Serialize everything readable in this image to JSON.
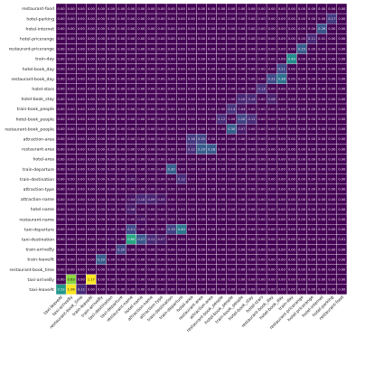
{
  "chart_data": {
    "type": "heatmap",
    "title": "",
    "xlabel": "",
    "ylabel": "",
    "colormap": "viridis",
    "vmin": 0,
    "vmax": 1,
    "grid": true,
    "rows": [
      "restaurant-food",
      "hotel-parking",
      "hotel-internet",
      "hotel-pricerange",
      "restaurant-pricerange",
      "train-day",
      "hotel-book_day",
      "restaurant-book_day",
      "hotel-stars",
      "hotel-book_stay",
      "train-book_people",
      "hotel-book_people",
      "restaurant-book_people",
      "attraction-area",
      "restaurant-area",
      "hotel-area",
      "train-departure",
      "train-destination",
      "attraction-type",
      "attraction-name",
      "hotel-name",
      "restaurant-name",
      "taxi-departure",
      "taxi-destination",
      "train-arriveBy",
      "train-leaveAt",
      "restaurant-book_time",
      "taxi-arriveBy",
      "taxi-leaveAt"
    ],
    "columns": [
      "taxi-leaveAt",
      "taxi-arriveBy",
      "restaurant-book_time",
      "train-leaveAt",
      "train-arriveBy",
      "taxi-destination",
      "taxi-departure",
      "restaurant-name",
      "hotel-name",
      "attraction-name",
      "attraction-type",
      "train-destination",
      "train-departure",
      "hotel-area",
      "restaurant-area",
      "attraction-area",
      "restaurant-book_people",
      "hotel-book_people",
      "train-book_people",
      "hotel-book_stay",
      "hotel-stars",
      "restaurant-book_day",
      "hotel-book_day",
      "train-day",
      "restaurant-pricerange",
      "hotel-pricerange",
      "hotel-internet",
      "hotel-parking",
      "restaurant-food"
    ],
    "values": [
      [
        0.0,
        0.0,
        0.0,
        0.0,
        0.0,
        0.0,
        0.0,
        0.0,
        0.0,
        0.0,
        0.0,
        0.0,
        0.0,
        0.0,
        0.0,
        0.0,
        0.0,
        0.0,
        0.0,
        0.0,
        0.0,
        0.0,
        0.0,
        0.0,
        0.0,
        0.0,
        0.0,
        0.0,
        0.0
      ],
      [
        0.0,
        0.0,
        0.0,
        0.0,
        0.0,
        0.0,
        0.0,
        0.0,
        0.0,
        0.0,
        0.0,
        0.0,
        0.0,
        0.0,
        0.0,
        0.0,
        0.0,
        0.0,
        0.0,
        0.0,
        0.0,
        0.0,
        0.0,
        0.0,
        0.0,
        0.0,
        0.0,
        0.17,
        0.0
      ],
      [
        0.0,
        0.0,
        0.0,
        0.0,
        0.0,
        0.0,
        0.0,
        0.0,
        0.0,
        0.0,
        0.0,
        0.0,
        0.0,
        0.0,
        0.0,
        0.0,
        0.0,
        0.0,
        0.0,
        0.0,
        0.0,
        0.0,
        0.0,
        0.0,
        0.0,
        0.0,
        0.26,
        0.0,
        0.0
      ],
      [
        0.0,
        0.0,
        0.0,
        0.0,
        0.0,
        0.0,
        0.0,
        0.0,
        0.0,
        0.0,
        0.0,
        0.0,
        0.0,
        0.0,
        0.0,
        0.0,
        0.0,
        0.0,
        0.0,
        0.0,
        0.0,
        0.0,
        0.0,
        0.0,
        0.0,
        0.11,
        0.01,
        0.0,
        0.0
      ],
      [
        0.0,
        0.0,
        0.0,
        0.0,
        0.0,
        0.0,
        0.0,
        0.0,
        0.0,
        0.0,
        0.0,
        0.0,
        0.0,
        0.0,
        0.0,
        0.0,
        0.0,
        0.0,
        0.0,
        0.0,
        0.0,
        0.0,
        0.0,
        0.0,
        0.29,
        0.0,
        0.0,
        0.0,
        0.0
      ],
      [
        0.0,
        0.0,
        0.0,
        0.0,
        0.0,
        0.0,
        0.0,
        0.0,
        0.0,
        0.0,
        0.0,
        0.0,
        0.0,
        0.0,
        0.0,
        0.0,
        0.0,
        0.0,
        0.0,
        0.0,
        0.0,
        0.0,
        0.0,
        0.49,
        0.0,
        0.0,
        0.0,
        0.0,
        0.0
      ],
      [
        0.0,
        0.0,
        0.0,
        0.0,
        0.0,
        0.0,
        0.0,
        0.0,
        0.0,
        0.0,
        0.0,
        0.0,
        0.0,
        0.0,
        0.0,
        0.0,
        0.0,
        0.0,
        0.0,
        0.0,
        0.0,
        0.0,
        0.21,
        0.0,
        0.0,
        0.0,
        0.0,
        0.0,
        0.0
      ],
      [
        0.0,
        0.0,
        0.0,
        0.0,
        0.0,
        0.0,
        0.0,
        0.0,
        0.0,
        0.0,
        0.0,
        0.0,
        0.0,
        0.0,
        0.0,
        0.0,
        0.0,
        0.0,
        0.0,
        0.0,
        0.0,
        0.22,
        0.38,
        0.0,
        0.0,
        0.0,
        0.0,
        0.0,
        0.0
      ],
      [
        0.0,
        0.0,
        0.0,
        0.0,
        0.0,
        0.0,
        0.0,
        0.0,
        0.0,
        0.0,
        0.0,
        0.0,
        0.0,
        0.0,
        0.0,
        0.0,
        0.0,
        0.0,
        0.0,
        0.0,
        0.13,
        0.0,
        0.0,
        0.0,
        0.0,
        0.0,
        0.0,
        0.0,
        0.0
      ],
      [
        0.0,
        0.0,
        0.0,
        0.0,
        0.0,
        0.0,
        0.0,
        0.0,
        0.0,
        0.0,
        0.0,
        0.0,
        0.0,
        0.0,
        0.0,
        0.0,
        0.0,
        0.0,
        0.1,
        0.1,
        0.0,
        0.08,
        0.0,
        0.0,
        0.0,
        0.0,
        0.0,
        0.0,
        0.0
      ],
      [
        0.0,
        0.0,
        0.0,
        0.0,
        0.0,
        0.0,
        0.0,
        0.0,
        0.0,
        0.0,
        0.0,
        0.0,
        0.0,
        0.0,
        0.0,
        0.0,
        0.0,
        0.14,
        0.04,
        0.0,
        0.0,
        0.0,
        0.0,
        0.0,
        0.0,
        0.0,
        0.0,
        0.0,
        0.0
      ],
      [
        0.0,
        0.0,
        0.0,
        0.0,
        0.0,
        0.0,
        0.0,
        0.0,
        0.0,
        0.0,
        0.0,
        0.0,
        0.0,
        0.0,
        0.0,
        0.0,
        0.12,
        0.0,
        0.2,
        0.12,
        0.0,
        0.0,
        0.0,
        0.0,
        0.0,
        0.0,
        0.0,
        0.0,
        0.0
      ],
      [
        0.0,
        0.0,
        0.0,
        0.0,
        0.0,
        0.0,
        0.0,
        0.0,
        0.0,
        0.0,
        0.0,
        0.0,
        0.0,
        0.0,
        0.0,
        0.0,
        0.0,
        0.3,
        0.07,
        0.0,
        0.0,
        0.0,
        0.0,
        0.0,
        0.0,
        0.0,
        0.0,
        0.0,
        0.0
      ],
      [
        0.0,
        0.0,
        0.0,
        0.0,
        0.0,
        0.0,
        0.0,
        0.0,
        0.0,
        0.0,
        0.0,
        0.0,
        0.0,
        0.16,
        0.2,
        0.0,
        0.0,
        0.0,
        0.0,
        0.0,
        0.0,
        0.0,
        0.0,
        0.0,
        0.0,
        0.0,
        0.0,
        0.0,
        0.0
      ],
      [
        0.0,
        0.0,
        0.0,
        0.0,
        0.0,
        0.0,
        0.0,
        0.0,
        0.0,
        0.0,
        0.0,
        0.0,
        0.0,
        0.12,
        0.29,
        0.28,
        0.0,
        0.0,
        0.0,
        0.0,
        0.0,
        0.0,
        0.0,
        0.0,
        0.0,
        0.0,
        0.0,
        0.0,
        0.0
      ],
      [
        0.0,
        0.0,
        0.0,
        0.0,
        0.0,
        0.0,
        0.0,
        0.0,
        0.0,
        0.0,
        0.0,
        0.0,
        0.0,
        0.0,
        0.0,
        0.0,
        0.0,
        0.0,
        0.0,
        0.0,
        0.0,
        0.0,
        0.0,
        0.0,
        0.0,
        0.0,
        0.0,
        0.0,
        0.0
      ],
      [
        0.0,
        0.0,
        0.0,
        0.0,
        0.0,
        0.0,
        0.0,
        0.0,
        0.0,
        0.0,
        0.0,
        0.3,
        0.0,
        0.0,
        0.0,
        0.0,
        0.0,
        0.0,
        0.0,
        0.0,
        0.0,
        0.0,
        0.0,
        0.0,
        0.0,
        0.0,
        0.0,
        0.0,
        0.0
      ],
      [
        0.0,
        0.0,
        0.0,
        0.0,
        0.0,
        0.0,
        0.0,
        0.02,
        0.0,
        0.0,
        0.0,
        0.0,
        0.12,
        0.0,
        0.0,
        0.0,
        0.0,
        0.0,
        0.0,
        0.0,
        0.0,
        0.0,
        0.0,
        0.0,
        0.0,
        0.0,
        0.0,
        0.0,
        0.0
      ],
      [
        0.0,
        0.0,
        0.0,
        0.0,
        0.0,
        0.0,
        0.0,
        0.0,
        0.0,
        0.0,
        0.0,
        0.0,
        0.0,
        0.0,
        0.0,
        0.0,
        0.0,
        0.0,
        0.0,
        0.0,
        0.0,
        0.0,
        0.0,
        0.0,
        0.0,
        0.0,
        0.0,
        0.0,
        0.0
      ],
      [
        0.0,
        0.0,
        0.0,
        0.0,
        0.0,
        0.0,
        0.0,
        0.04,
        0.1,
        0.09,
        0.05,
        0.0,
        0.0,
        0.0,
        0.0,
        0.0,
        0.0,
        0.0,
        0.0,
        0.0,
        0.0,
        0.0,
        0.0,
        0.0,
        0.0,
        0.0,
        0.0,
        0.0,
        0.0
      ],
      [
        0.0,
        0.0,
        0.0,
        0.0,
        0.0,
        0.0,
        0.0,
        0.06,
        0.0,
        0.0,
        0.0,
        0.0,
        0.0,
        0.0,
        0.0,
        0.0,
        0.0,
        0.0,
        0.0,
        0.0,
        0.0,
        0.0,
        0.0,
        0.0,
        0.0,
        0.0,
        0.0,
        0.0,
        0.0
      ],
      [
        0.0,
        0.0,
        0.0,
        0.0,
        0.0,
        0.0,
        0.0,
        0.0,
        0.03,
        0.0,
        0.0,
        0.0,
        0.0,
        0.0,
        0.0,
        0.0,
        0.0,
        0.0,
        0.0,
        0.0,
        0.0,
        0.0,
        0.0,
        0.0,
        0.0,
        0.0,
        0.0,
        0.0,
        0.0
      ],
      [
        0.0,
        0.0,
        0.0,
        0.0,
        0.0,
        0.0,
        0.0,
        0.21,
        0.0,
        0.0,
        0.0,
        0.19,
        0.4,
        0.0,
        0.0,
        0.0,
        0.0,
        0.0,
        0.0,
        0.0,
        0.0,
        0.0,
        0.0,
        0.0,
        0.0,
        0.0,
        0.0,
        0.0,
        0.0
      ],
      [
        0.0,
        0.0,
        0.0,
        0.0,
        0.0,
        0.01,
        0.0,
        0.6,
        0.27,
        0.11,
        0.07,
        0.0,
        0.0,
        0.0,
        0.0,
        0.0,
        0.0,
        0.0,
        0.0,
        0.0,
        0.0,
        0.0,
        0.0,
        0.0,
        0.0,
        0.0,
        0.0,
        0.0,
        0.01
      ],
      [
        0.0,
        0.0,
        0.0,
        0.0,
        0.0,
        0.0,
        0.2,
        0.0,
        0.0,
        0.0,
        0.0,
        0.0,
        0.0,
        0.0,
        0.0,
        0.0,
        0.0,
        0.0,
        0.0,
        0.0,
        0.0,
        0.0,
        0.0,
        0.0,
        0.0,
        0.0,
        0.0,
        0.0,
        0.0
      ],
      [
        0.0,
        0.0,
        0.0,
        0.0,
        0.29,
        0.0,
        0.0,
        0.0,
        0.0,
        0.0,
        0.0,
        0.0,
        0.0,
        0.0,
        0.0,
        0.0,
        0.0,
        0.0,
        0.0,
        0.0,
        0.0,
        0.0,
        0.0,
        0.0,
        0.0,
        0.0,
        0.0,
        0.0,
        0.0
      ],
      [
        0.0,
        0.0,
        0.0,
        0.0,
        0.0,
        0.0,
        0.0,
        0.0,
        0.0,
        0.0,
        0.0,
        0.0,
        0.0,
        0.0,
        0.0,
        0.0,
        0.0,
        0.0,
        0.0,
        0.0,
        0.0,
        0.0,
        0.0,
        0.0,
        0.0,
        0.0,
        0.0,
        0.0,
        0.0
      ],
      [
        0.0,
        0.83,
        0.0,
        1.17,
        0.0,
        0.0,
        0.0,
        0.0,
        0.0,
        0.0,
        0.0,
        0.0,
        0.0,
        0.0,
        0.0,
        0.0,
        0.0,
        0.0,
        0.0,
        0.0,
        0.0,
        0.0,
        0.0,
        0.0,
        0.0,
        0.0,
        0.0,
        0.0,
        0.0
      ],
      [
        0.53,
        1.06,
        0.12,
        0.0,
        0.0,
        0.0,
        0.0,
        0.0,
        0.0,
        0.0,
        0.0,
        0.0,
        0.0,
        0.0,
        0.0,
        0.0,
        0.0,
        0.0,
        0.0,
        0.0,
        0.0,
        0.0,
        0.0,
        0.0,
        0.0,
        0.0,
        0.0,
        0.0,
        0.0
      ]
    ]
  }
}
